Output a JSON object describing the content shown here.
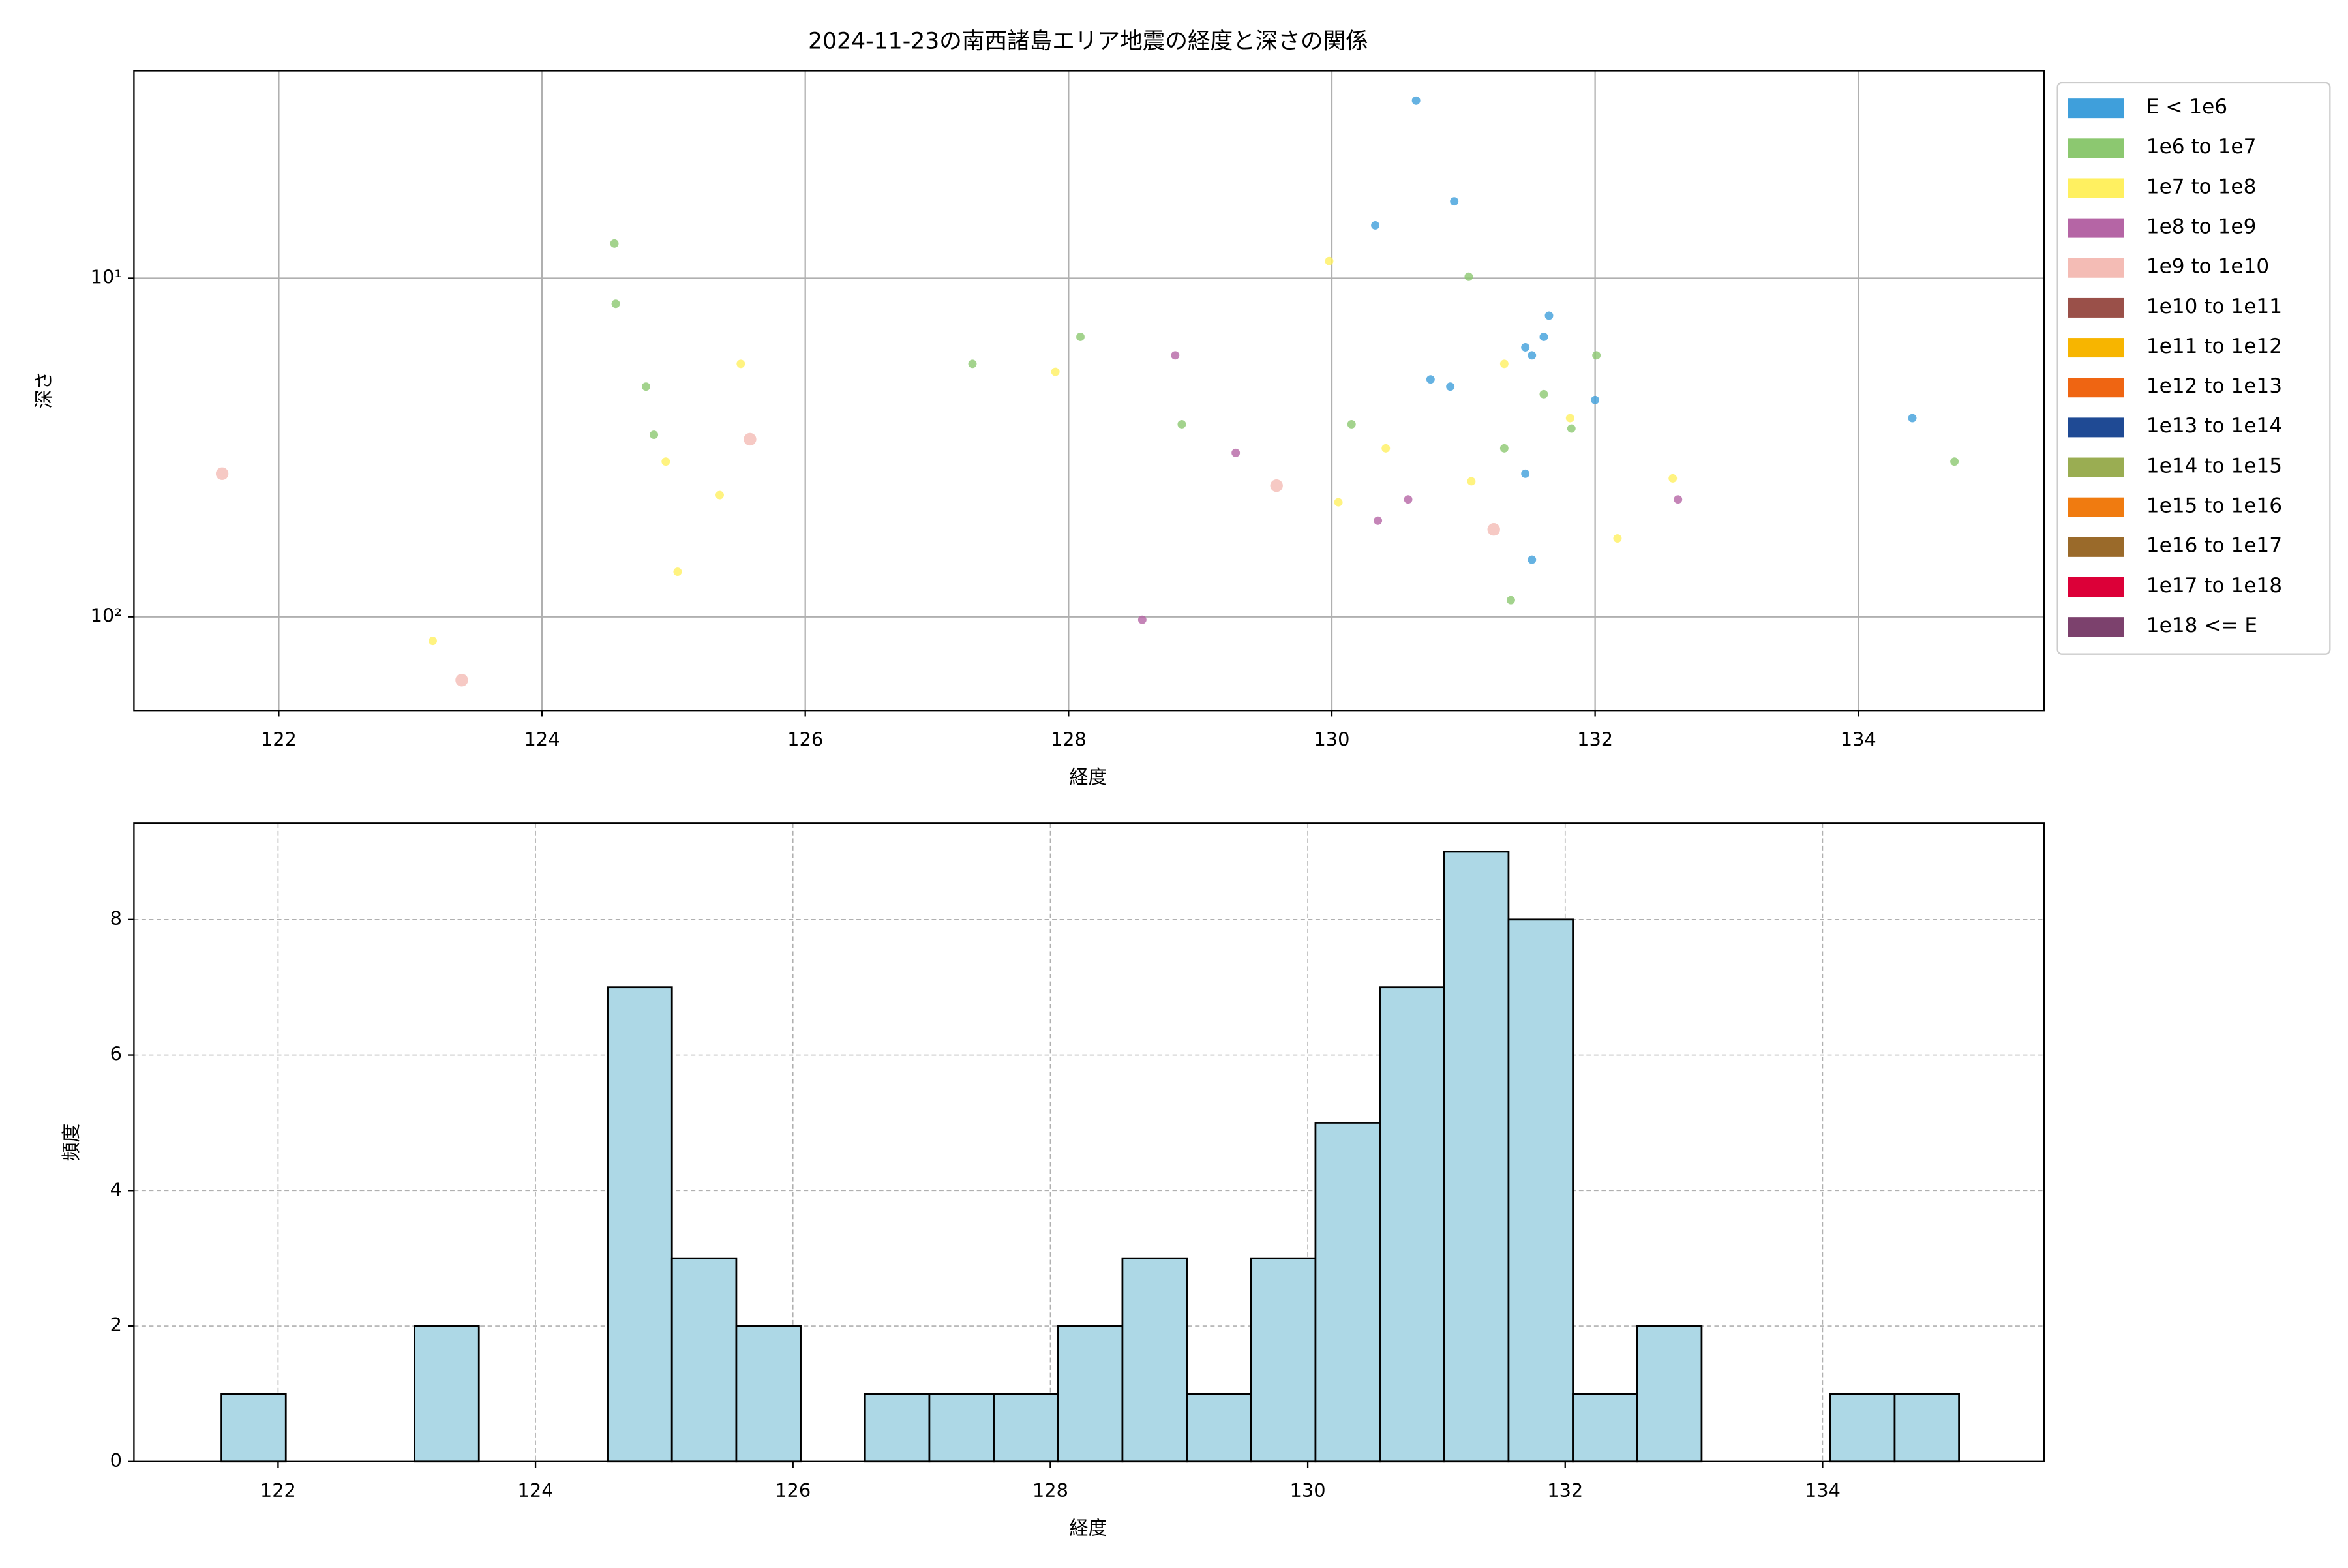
{
  "chart_data": [
    {
      "type": "scatter",
      "title": "2024-11-23の南西諸島エリア地震の経度と深さの関係",
      "x_label": "経度",
      "y_label": "深さ",
      "xlim": [
        120.9,
        135.41
      ],
      "xticks": [
        122,
        124,
        126,
        128,
        130,
        132,
        134
      ],
      "ylim": [
        2.44,
        189
      ],
      "yscale": "log",
      "y_inverted": true,
      "yticks": [
        {
          "value": 10,
          "label": "10¹"
        },
        {
          "value": 100,
          "label": "10²"
        }
      ],
      "grid": true,
      "legend": "outside right",
      "series": [
        {
          "name": "E < 1e6",
          "color": "#3f9fdb",
          "x": [
            130.64,
            130.93,
            130.33,
            131.65,
            131.61,
            131.47,
            131.52,
            130.75,
            130.9,
            132.0,
            131.47,
            131.52,
            134.41
          ],
          "y": [
            2.99,
            5.93,
            6.98,
            12.9,
            14.9,
            16.0,
            16.9,
            19.9,
            20.9,
            22.9,
            37.8,
            67.8,
            25.9
          ]
        },
        {
          "name": "1e6 to 1e7",
          "color": "#8cc870",
          "x": [
            124.55,
            124.56,
            131.04,
            128.09,
            127.27,
            132.01,
            124.79,
            131.61,
            124.85,
            128.86,
            130.15,
            131.82,
            131.31,
            134.73,
            131.36
          ],
          "y": [
            7.9,
            11.9,
            9.9,
            14.9,
            17.9,
            16.9,
            20.9,
            22.0,
            29.0,
            27.0,
            27.0,
            27.8,
            31.8,
            34.8,
            89.3
          ]
        },
        {
          "name": "1e7 to 1e8",
          "color": "#fff060",
          "x": [
            129.98,
            125.51,
            127.9,
            131.31,
            131.81,
            124.94,
            130.41,
            132.59,
            131.06,
            125.35,
            130.05,
            132.17,
            125.03,
            123.17
          ],
          "y": [
            8.9,
            17.9,
            18.9,
            17.9,
            25.9,
            34.8,
            31.8,
            39.0,
            39.8,
            43.7,
            45.9,
            58.7,
            73.6,
            117.8
          ]
        },
        {
          "name": "1e8 to 1e9",
          "color": "#b565a5",
          "x": [
            128.81,
            129.27,
            130.58,
            132.63,
            130.35,
            128.56
          ],
          "y": [
            16.9,
            32.8,
            45.0,
            45.0,
            52.0,
            102
          ]
        },
        {
          "name": "1e9 to 1e10",
          "color": "#f4bcb5",
          "x": [
            121.57,
            125.58,
            129.58,
            131.23,
            123.39
          ],
          "y": [
            37.8,
            29.9,
            41.0,
            55.2,
            153.8
          ]
        },
        {
          "name": "1e10 to 1e11",
          "color": "#9a5049",
          "x": [],
          "y": []
        },
        {
          "name": "1e11 to 1e12",
          "color": "#f7b500",
          "x": [],
          "y": []
        },
        {
          "name": "1e12 to 1e13",
          "color": "#ef6512",
          "x": [],
          "y": []
        },
        {
          "name": "1e13 to 1e14",
          "color": "#1f4a94",
          "x": [],
          "y": []
        },
        {
          "name": "1e14 to 1e15",
          "color": "#9aad52",
          "x": [],
          "y": []
        },
        {
          "name": "1e15 to 1e16",
          "color": "#f07b10",
          "x": [],
          "y": []
        },
        {
          "name": "1e16 to 1e17",
          "color": "#9a6a2a",
          "x": [],
          "y": []
        },
        {
          "name": "1e17 to 1e18",
          "color": "#dc0038",
          "x": [],
          "y": []
        },
        {
          "name": "1e18 <= E",
          "color": "#7c416d",
          "x": [],
          "y": []
        }
      ]
    },
    {
      "type": "histogram",
      "x_label": "経度",
      "y_label": "頻度",
      "xlim": [
        120.88,
        135.72
      ],
      "xticks": [
        122,
        124,
        126,
        128,
        130,
        132,
        134
      ],
      "ylim": [
        0,
        9.42
      ],
      "yticks": [
        0,
        2,
        4,
        6,
        8
      ],
      "grid": true,
      "color": "#add8e6",
      "bins": [
        121.56,
        122.06,
        122.56,
        123.06,
        123.56,
        124.06,
        124.56,
        125.06,
        125.56,
        126.06,
        126.56,
        127.06,
        127.56,
        128.06,
        128.56,
        129.06,
        129.56,
        130.06,
        130.56,
        131.06,
        131.56,
        132.06,
        132.56,
        133.06,
        133.56,
        134.06,
        134.56,
        135.06
      ],
      "counts": [
        1,
        0,
        0,
        2,
        0,
        0,
        7,
        3,
        2,
        0,
        1,
        1,
        1,
        2,
        3,
        1,
        3,
        5,
        7,
        9,
        8,
        1,
        2,
        0,
        0,
        1,
        1
      ]
    }
  ]
}
